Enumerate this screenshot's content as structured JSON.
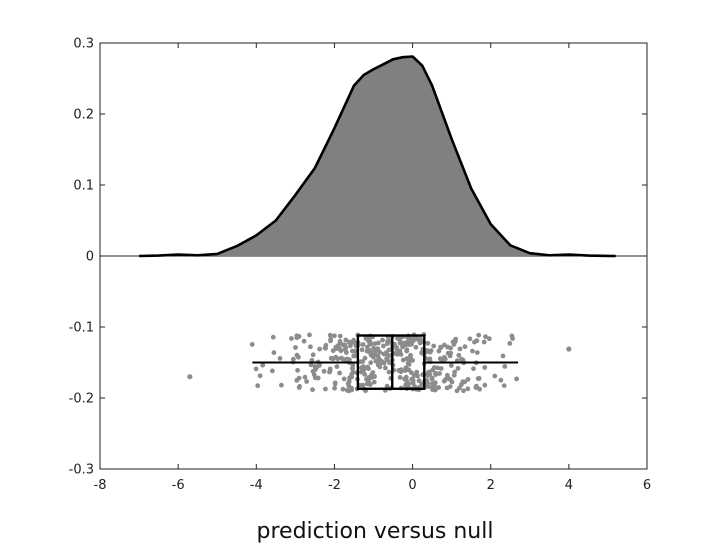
{
  "chart_data": {
    "type": "raincloud",
    "title": "",
    "xlabel": "prediction versus null",
    "ylabel": "",
    "xlim": [
      -8,
      6
    ],
    "ylim": [
      -0.3,
      0.3
    ],
    "xticks": [
      -8,
      -6,
      -4,
      -2,
      0,
      2,
      4,
      6
    ],
    "yticks": [
      -0.3,
      -0.2,
      -0.1,
      0,
      0.1,
      0.2,
      0.3
    ],
    "xtick_labels": [
      "-8",
      "-6",
      "-4",
      "-2",
      "0",
      "2",
      "4",
      "6"
    ],
    "ytick_labels": [
      "-0.3",
      "-0.2",
      "-0.1",
      "0",
      "0.1",
      "0.2",
      "0.3"
    ],
    "grid": false,
    "density": {
      "x": [
        -7.0,
        -6.5,
        -6.0,
        -5.5,
        -5.0,
        -4.5,
        -4.0,
        -3.5,
        -3.0,
        -2.5,
        -2.0,
        -1.5,
        -1.25,
        -1.0,
        -0.75,
        -0.5,
        -0.25,
        0.0,
        0.25,
        0.5,
        1.0,
        1.5,
        2.0,
        2.5,
        3.0,
        3.5,
        4.0,
        4.5,
        5.0,
        5.2
      ],
      "y": [
        0.0,
        0.0005,
        0.002,
        0.001,
        0.003,
        0.014,
        0.029,
        0.05,
        0.086,
        0.124,
        0.18,
        0.24,
        0.255,
        0.263,
        0.27,
        0.277,
        0.28,
        0.281,
        0.268,
        0.24,
        0.165,
        0.095,
        0.045,
        0.015,
        0.004,
        0.001,
        0.002,
        0.0005,
        0.0001,
        0.0
      ],
      "fill": "#808080",
      "stroke": "#000000"
    },
    "boxplot": {
      "center_y": -0.15,
      "box_y_range": [
        -0.187,
        -0.112
      ],
      "q1": -1.4,
      "median": -0.52,
      "q3": 0.3,
      "whisker_low": -4.1,
      "whisker_high": 2.7,
      "outliers_x": [
        -5.7,
        4.0
      ]
    },
    "jitter": {
      "y_range": [
        -0.19,
        -0.11
      ],
      "point_color": "#8c8c8c"
    }
  }
}
